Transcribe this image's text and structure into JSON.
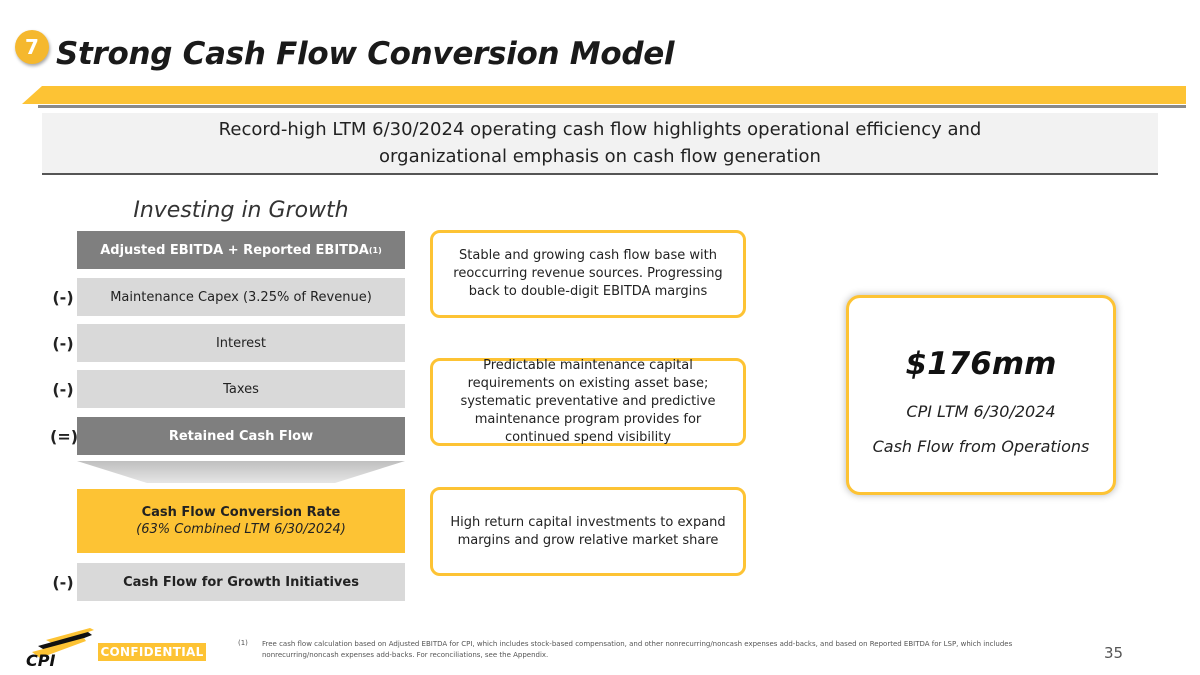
{
  "header": {
    "section_number": "7",
    "title": "Strong Cash Flow Conversion Model"
  },
  "banner": {
    "line1": "Record-high LTM 6/30/2024 operating cash flow highlights operational efficiency and",
    "line2": "organizational emphasis on cash flow generation"
  },
  "model": {
    "heading": "Investing in Growth",
    "rows": [
      {
        "op": "",
        "label": "Adjusted EBITDA + Reported EBITDA",
        "sup": "(1)"
      },
      {
        "op": "(-)",
        "label": "Maintenance Capex (3.25% of Revenue)"
      },
      {
        "op": "(-)",
        "label": "Interest"
      },
      {
        "op": "(-)",
        "label": "Taxes"
      },
      {
        "op": "(=)",
        "label": "Retained Cash Flow"
      }
    ],
    "conversion": {
      "line1": "Cash Flow Conversion Rate",
      "line2": "(63% Combined LTM 6/30/2024)"
    },
    "growth": {
      "op": "(-)",
      "label": "Cash Flow for Growth Initiatives"
    }
  },
  "callouts": [
    "Stable and growing cash flow base with reoccurring revenue sources. Progressing back to double-digit EBITDA margins",
    "Predictable maintenance capital requirements on existing asset base; systematic preventative and predictive maintenance program provides for continued spend visibility",
    "High return capital investments to expand margins and grow relative market share"
  ],
  "stat": {
    "value": "$176mm",
    "line1": "CPI LTM 6/30/2024",
    "line2": "Cash Flow from Operations"
  },
  "footer": {
    "logo_text": "CPI",
    "confidential": "CONFIDENTIAL",
    "footnote_num": "(1)",
    "footnote": "Free cash flow calculation based on Adjusted EBITDA for CPI, which includes stock-based compensation, and other nonrecurring/noncash expenses add-backs, and based on Reported EBITDA for LSP, which includes nonrecurring/noncash expenses add-backs. For reconciliations, see the Appendix.",
    "page": "35"
  },
  "colors": {
    "accent": "#fdc334",
    "dark_row": "#7f7f7f",
    "light_row": "#d9d9d9"
  }
}
